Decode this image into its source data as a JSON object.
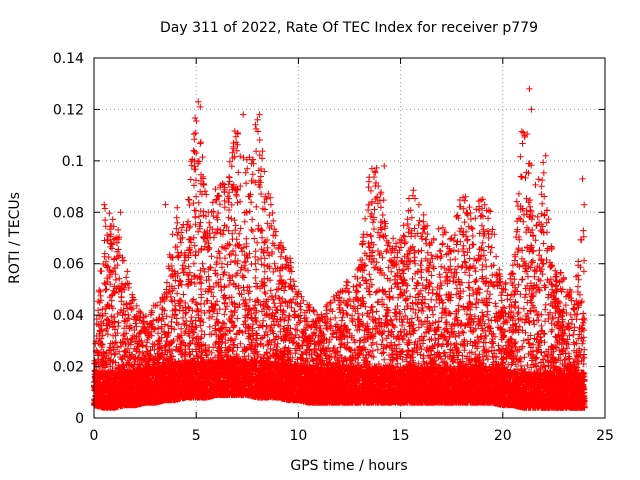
{
  "chart_data": {
    "type": "scatter",
    "title": "Day 311 of 2022, Rate Of TEC Index for receiver p779",
    "xlabel": "GPS time / hours",
    "ylabel": "ROTI / TECUs",
    "xlim": [
      0,
      25
    ],
    "ylim": [
      0,
      0.14
    ],
    "xticks": [
      "0",
      "5",
      "10",
      "15",
      "20",
      "25"
    ],
    "yticks": [
      "0",
      "0.02",
      "0.04",
      "0.06",
      "0.08",
      "0.1",
      "0.12",
      "0.14"
    ],
    "grid": true,
    "marker": "plus",
    "color": "#ff0000",
    "envelope": {
      "x": [
        0,
        0.5,
        1,
        1.5,
        2,
        2.5,
        3,
        3.5,
        4,
        4.5,
        5,
        5.5,
        6,
        6.5,
        7,
        7.5,
        8,
        8.5,
        9,
        9.5,
        10,
        10.5,
        11,
        11.5,
        12,
        12.5,
        13,
        13.5,
        14,
        14.5,
        15,
        15.5,
        16,
        16.5,
        17,
        17.5,
        18,
        18.5,
        19,
        19.5,
        20,
        20.5,
        21,
        21.5,
        22,
        22.5,
        23,
        23.5,
        24
      ],
      "ymax": [
        0.022,
        0.083,
        0.08,
        0.062,
        0.045,
        0.04,
        0.045,
        0.05,
        0.083,
        0.08,
        0.124,
        0.09,
        0.09,
        0.095,
        0.119,
        0.1,
        0.118,
        0.095,
        0.07,
        0.065,
        0.05,
        0.045,
        0.04,
        0.045,
        0.05,
        0.055,
        0.06,
        0.097,
        0.098,
        0.07,
        0.07,
        0.09,
        0.085,
        0.07,
        0.075,
        0.07,
        0.09,
        0.08,
        0.09,
        0.08,
        0.05,
        0.06,
        0.128,
        0.09,
        0.1,
        0.06,
        0.055,
        0.05,
        0.093
      ],
      "ymin": [
        0.005,
        0.004,
        0.004,
        0.005,
        0.005,
        0.006,
        0.006,
        0.007,
        0.007,
        0.008,
        0.008,
        0.008,
        0.009,
        0.009,
        0.009,
        0.009,
        0.008,
        0.008,
        0.008,
        0.007,
        0.007,
        0.006,
        0.006,
        0.006,
        0.006,
        0.006,
        0.006,
        0.006,
        0.006,
        0.006,
        0.006,
        0.006,
        0.006,
        0.006,
        0.006,
        0.006,
        0.006,
        0.006,
        0.006,
        0.006,
        0.005,
        0.005,
        0.004,
        0.004,
        0.004,
        0.004,
        0.004,
        0.004,
        0.004
      ]
    },
    "highlights": [
      {
        "x": 5.1,
        "y": 0.123
      },
      {
        "x": 5.2,
        "y": 0.121
      },
      {
        "x": 7.3,
        "y": 0.118
      },
      {
        "x": 8.1,
        "y": 0.118
      },
      {
        "x": 8.0,
        "y": 0.116
      },
      {
        "x": 21.3,
        "y": 0.128
      },
      {
        "x": 21.0,
        "y": 0.111
      },
      {
        "x": 21.4,
        "y": 0.12
      },
      {
        "x": 22.1,
        "y": 0.102
      },
      {
        "x": 14.2,
        "y": 0.098
      },
      {
        "x": 13.6,
        "y": 0.097
      },
      {
        "x": 23.9,
        "y": 0.093
      },
      {
        "x": 5.0,
        "y": 0.103
      },
      {
        "x": 0.5,
        "y": 0.083
      },
      {
        "x": 1.3,
        "y": 0.08
      },
      {
        "x": 3.5,
        "y": 0.083
      }
    ]
  }
}
